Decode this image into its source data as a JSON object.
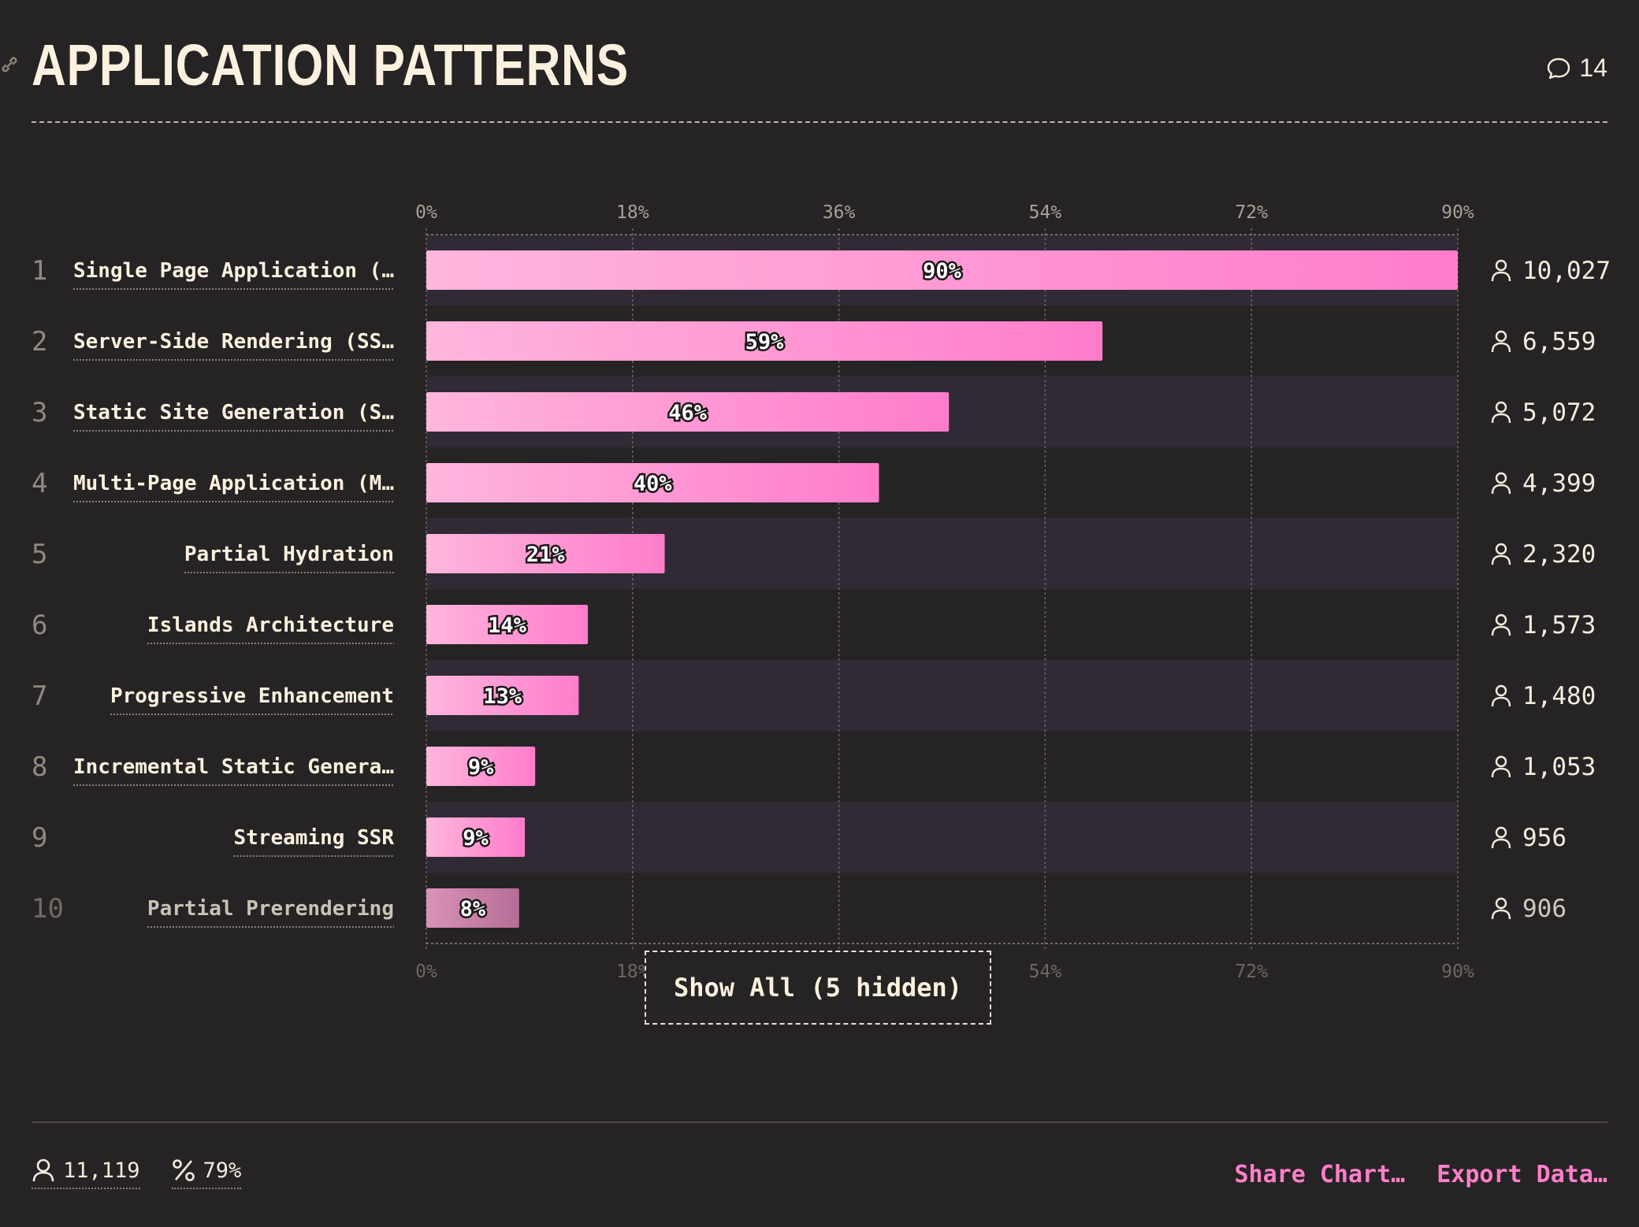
{
  "header": {
    "title": "APPLICATION PATTERNS",
    "comment_count": "14"
  },
  "colors": {
    "background": "#262324",
    "bar_start": "#ffb6dd",
    "bar_end": "#ff7ccb",
    "bar_muted": "#b56e96",
    "alt_row": "#302a35",
    "accent": "#ff7fc9"
  },
  "chart_data": {
    "type": "bar",
    "orientation": "horizontal",
    "ticks": [
      "0%",
      "18%",
      "36%",
      "54%",
      "72%",
      "90%"
    ],
    "xlim": [
      0,
      90
    ],
    "grid": true,
    "rows": [
      {
        "rank": "1",
        "label": "Single Page Application (…",
        "value": 90,
        "value_label": "90%",
        "count": "10,027"
      },
      {
        "rank": "2",
        "label": "Server-Side Rendering (SS…",
        "value": 59,
        "value_label": "59%",
        "count": "6,559"
      },
      {
        "rank": "3",
        "label": "Static Site Generation (S…",
        "value": 45.6,
        "value_label": "46%",
        "count": "5,072"
      },
      {
        "rank": "4",
        "label": "Multi-Page Application (M…",
        "value": 39.5,
        "value_label": "40%",
        "count": "4,399"
      },
      {
        "rank": "5",
        "label": "Partial Hydration",
        "value": 20.8,
        "value_label": "21%",
        "count": "2,320"
      },
      {
        "rank": "6",
        "label": "Islands Architecture",
        "value": 14.1,
        "value_label": "14%",
        "count": "1,573"
      },
      {
        "rank": "7",
        "label": "Progressive Enhancement",
        "value": 13.3,
        "value_label": "13%",
        "count": "1,480"
      },
      {
        "rank": "8",
        "label": "Incremental Static Genera…",
        "value": 9.5,
        "value_label": "9%",
        "count": "1,053"
      },
      {
        "rank": "9",
        "label": "Streaming SSR",
        "value": 8.6,
        "value_label": "9%",
        "count": "956"
      },
      {
        "rank": "10",
        "label": "Partial Prerendering",
        "value": 8.1,
        "value_label": "8%",
        "count": "906",
        "muted": true
      }
    ]
  },
  "show_all_label": "Show All (5 hidden)",
  "footer": {
    "respondents": "11,119",
    "percentage": "79%",
    "share_label": "Share Chart…",
    "export_label": "Export Data…"
  }
}
